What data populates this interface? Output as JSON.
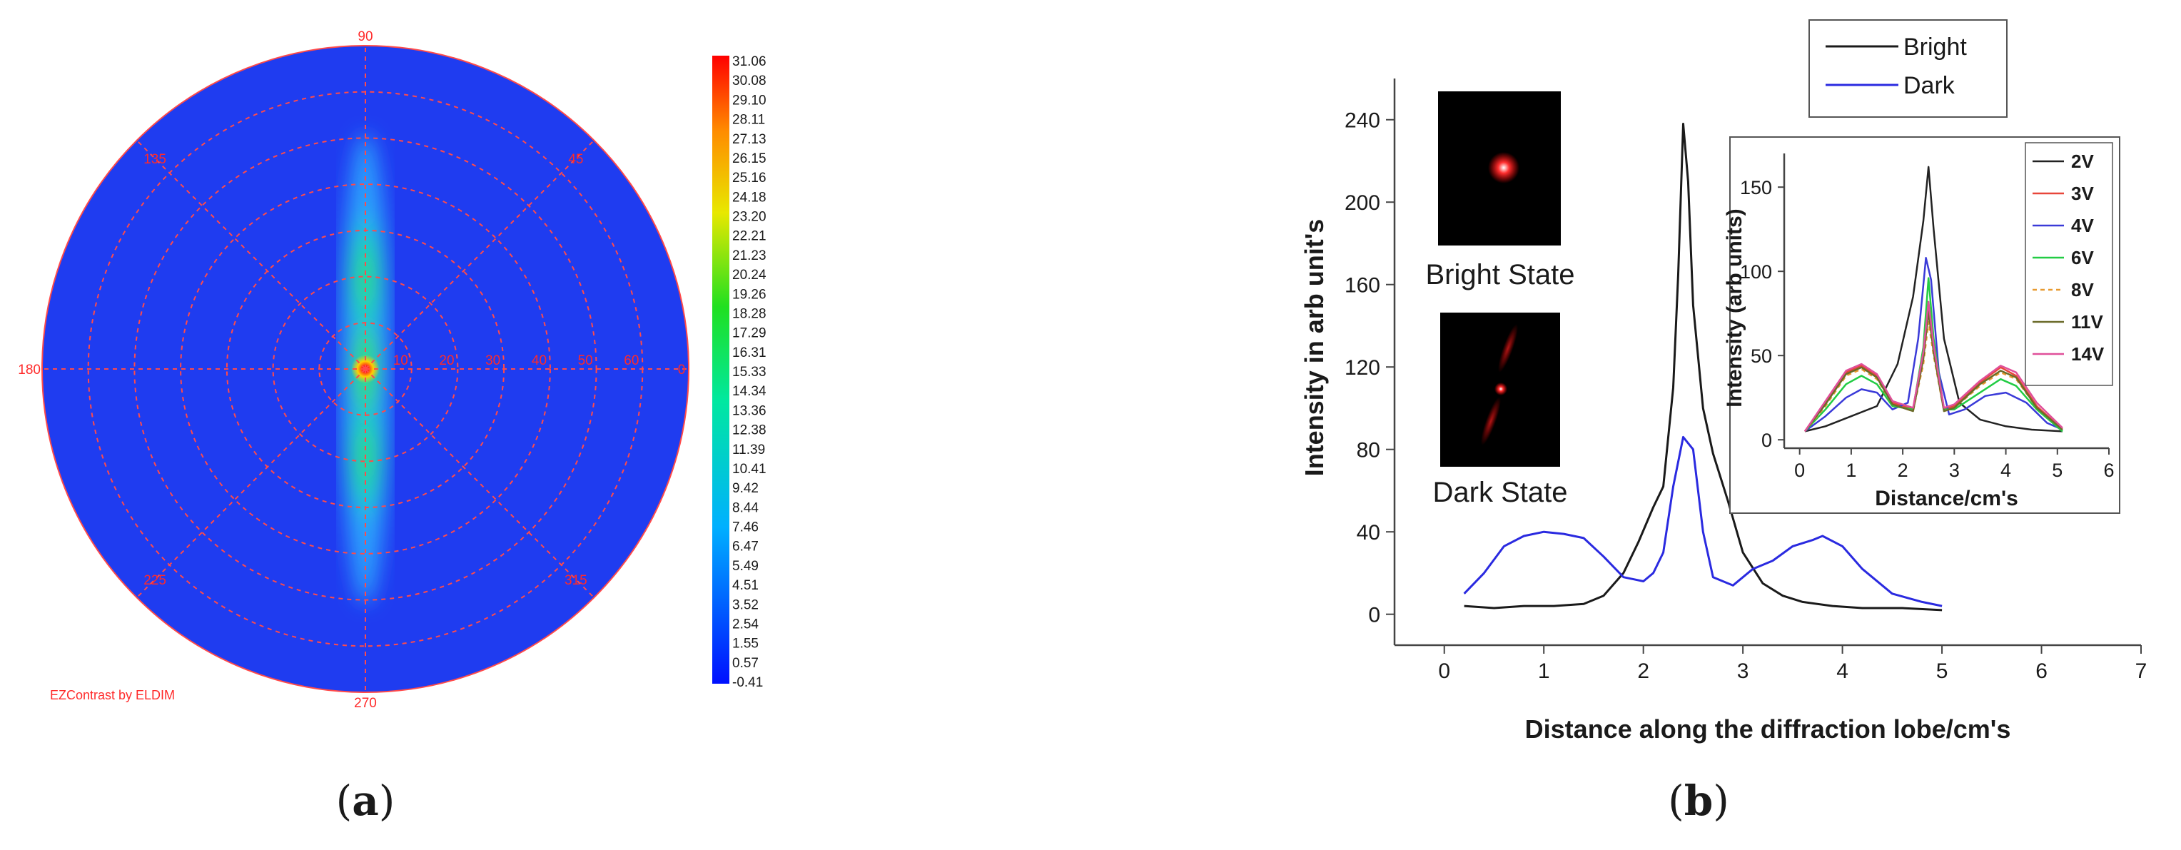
{
  "panel_a": {
    "label_char": "a",
    "angle_labels": [
      "90",
      "45",
      "0",
      "315",
      "270",
      "225",
      "180",
      "135"
    ],
    "radial_labels": [
      "10",
      "20",
      "30",
      "40",
      "50",
      "60"
    ],
    "credit": "EZContrast by ELDIM",
    "colorbar_labels": [
      "31.06",
      "30.08",
      "29.10",
      "28.11",
      "27.13",
      "26.15",
      "25.16",
      "24.18",
      "23.20",
      "22.21",
      "21.23",
      "20.24",
      "19.26",
      "18.28",
      "17.29",
      "16.31",
      "15.33",
      "14.34",
      "13.36",
      "12.38",
      "11.39",
      "10.41",
      "9.42",
      "8.44",
      "7.46",
      "6.47",
      "5.49",
      "4.51",
      "3.52",
      "2.54",
      "1.55",
      "0.57",
      "-0.41"
    ],
    "colors": {
      "background": "#1f3cf0",
      "grid": "#ff3a3a",
      "label": "#ff2a2a"
    }
  },
  "panel_b": {
    "label_char": "b",
    "inset_image_captions": [
      "Bright State",
      "Dark State"
    ]
  },
  "chart_data": [
    {
      "type": "line",
      "xlabel": "Distance along the diffraction lobe/cm's",
      "ylabel": "Intensity in arb unit's",
      "xlim": [
        -0.5,
        7
      ],
      "ylim": [
        -15,
        260
      ],
      "xticks": [
        0,
        1,
        2,
        3,
        4,
        5,
        6,
        7
      ],
      "yticks": [
        0,
        40,
        80,
        120,
        160,
        200,
        240
      ],
      "legend_position": "top",
      "series": [
        {
          "name": "Bright",
          "color": "#1a1a1a",
          "x": [
            0.2,
            0.5,
            0.8,
            1.1,
            1.4,
            1.6,
            1.8,
            1.95,
            2.1,
            2.2,
            2.3,
            2.35,
            2.4,
            2.45,
            2.5,
            2.6,
            2.7,
            2.85,
            3.0,
            3.2,
            3.4,
            3.6,
            3.9,
            4.2,
            4.6,
            5.0
          ],
          "y": [
            4,
            3,
            4,
            4,
            5,
            9,
            20,
            35,
            52,
            62,
            110,
            165,
            238,
            210,
            150,
            100,
            78,
            55,
            30,
            15,
            9,
            6,
            4,
            3,
            3,
            2
          ]
        },
        {
          "name": "Dark",
          "color": "#2a2ae0",
          "x": [
            0.2,
            0.4,
            0.6,
            0.8,
            1.0,
            1.2,
            1.4,
            1.6,
            1.8,
            2.0,
            2.1,
            2.2,
            2.3,
            2.4,
            2.5,
            2.6,
            2.7,
            2.8,
            2.9,
            3.1,
            3.3,
            3.5,
            3.7,
            3.8,
            4.0,
            4.2,
            4.5,
            4.8,
            5.0
          ],
          "y": [
            10,
            20,
            33,
            38,
            40,
            39,
            37,
            28,
            18,
            16,
            20,
            30,
            62,
            86,
            80,
            40,
            18,
            16,
            14,
            22,
            26,
            33,
            36,
            38,
            33,
            22,
            10,
            6,
            4
          ]
        }
      ]
    },
    {
      "type": "line",
      "xlabel": "Distance/cm's",
      "ylabel": "Intensity (arb units)",
      "xlim": [
        -0.3,
        6
      ],
      "ylim": [
        -5,
        170
      ],
      "xticks": [
        0,
        1,
        2,
        3,
        4,
        5,
        6
      ],
      "yticks": [
        0,
        50,
        100,
        150
      ],
      "legend_position": "right",
      "series": [
        {
          "name": "2V",
          "color": "#222222",
          "dash": false,
          "x": [
            0.1,
            0.5,
            1.0,
            1.5,
            1.9,
            2.2,
            2.4,
            2.5,
            2.6,
            2.8,
            3.1,
            3.5,
            4.0,
            4.5,
            5.1
          ],
          "y": [
            5,
            8,
            14,
            20,
            45,
            85,
            130,
            162,
            125,
            60,
            22,
            12,
            8,
            6,
            5
          ]
        },
        {
          "name": "3V",
          "color": "#e8463a",
          "dash": false,
          "x": [
            0.1,
            0.5,
            0.9,
            1.2,
            1.5,
            1.8,
            2.2,
            2.4,
            2.5,
            2.6,
            2.8,
            3.0,
            3.5,
            3.9,
            4.2,
            4.6,
            5.1
          ],
          "y": [
            5,
            22,
            40,
            44,
            38,
            22,
            18,
            50,
            80,
            55,
            18,
            20,
            34,
            43,
            38,
            20,
            6
          ]
        },
        {
          "name": "4V",
          "color": "#3a3ad8",
          "dash": false,
          "x": [
            0.1,
            0.5,
            0.9,
            1.2,
            1.5,
            1.8,
            2.1,
            2.3,
            2.45,
            2.55,
            2.7,
            2.9,
            3.2,
            3.6,
            4.0,
            4.4,
            4.8,
            5.1
          ],
          "y": [
            5,
            14,
            25,
            30,
            28,
            18,
            22,
            60,
            108,
            95,
            40,
            15,
            18,
            26,
            28,
            22,
            10,
            6
          ]
        },
        {
          "name": "6V",
          "color": "#22cc44",
          "dash": false,
          "x": [
            0.1,
            0.5,
            0.9,
            1.2,
            1.5,
            1.8,
            2.2,
            2.4,
            2.5,
            2.6,
            2.8,
            3.0,
            3.5,
            3.9,
            4.2,
            4.6,
            5.1
          ],
          "y": [
            5,
            18,
            33,
            38,
            33,
            20,
            18,
            55,
            96,
            60,
            18,
            18,
            28,
            36,
            32,
            18,
            5
          ]
        },
        {
          "name": "8V",
          "color": "#e89a30",
          "dash": true,
          "x": [
            0.1,
            0.5,
            0.9,
            1.2,
            1.5,
            1.8,
            2.2,
            2.4,
            2.5,
            2.6,
            2.8,
            3.0,
            3.5,
            3.9,
            4.2,
            4.6,
            5.1
          ],
          "y": [
            5,
            20,
            38,
            42,
            36,
            21,
            17,
            45,
            70,
            50,
            17,
            19,
            32,
            40,
            36,
            19,
            6
          ]
        },
        {
          "name": "11V",
          "color": "#6b6b2a",
          "dash": false,
          "x": [
            0.1,
            0.5,
            0.9,
            1.2,
            1.5,
            1.8,
            2.2,
            2.4,
            2.5,
            2.6,
            2.8,
            3.0,
            3.5,
            3.9,
            4.2,
            4.6,
            5.1
          ],
          "y": [
            5,
            21,
            39,
            43,
            37,
            21,
            17,
            48,
            76,
            52,
            17,
            19,
            33,
            41,
            37,
            19,
            6
          ]
        },
        {
          "name": "14V",
          "color": "#e0509a",
          "dash": false,
          "x": [
            0.1,
            0.5,
            0.9,
            1.2,
            1.5,
            1.8,
            2.2,
            2.4,
            2.5,
            2.6,
            2.8,
            3.0,
            3.5,
            3.9,
            4.2,
            4.6,
            5.1
          ],
          "y": [
            5,
            23,
            41,
            45,
            39,
            23,
            19,
            52,
            82,
            56,
            19,
            21,
            35,
            44,
            40,
            22,
            7
          ]
        }
      ]
    }
  ]
}
